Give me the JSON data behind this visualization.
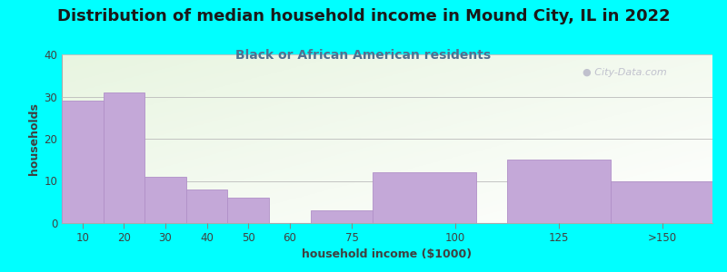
{
  "title": "Distribution of median household income in Mound City, IL in 2022",
  "subtitle": "Black or African American residents",
  "xlabel": "household income ($1000)",
  "ylabel": "households",
  "background_color": "#00FFFF",
  "bar_color": "#c4a8d8",
  "bar_edge_color": "#b090c8",
  "categories": [
    "10",
    "20",
    "30",
    "40",
    "50",
    "60",
    "75",
    "100",
    "125",
    ">150"
  ],
  "values": [
    29,
    31,
    11,
    8,
    6,
    0,
    3,
    12,
    15,
    10
  ],
  "tick_positions": [
    10,
    20,
    30,
    40,
    50,
    60,
    75,
    100,
    125,
    150
  ],
  "bar_lefts": [
    5,
    15,
    25,
    35,
    45,
    55,
    65,
    80,
    112.5,
    137.5
  ],
  "bar_widths": [
    10,
    10,
    10,
    10,
    10,
    10,
    15,
    25,
    25,
    25
  ],
  "xlim": [
    5,
    162
  ],
  "ylim": [
    0,
    40
  ],
  "yticks": [
    0,
    10,
    20,
    30,
    40
  ],
  "grid_color": "#bbbbbb",
  "title_fontsize": 13,
  "subtitle_fontsize": 10,
  "label_fontsize": 9,
  "tick_fontsize": 8.5,
  "title_color": "#1a1a1a",
  "subtitle_color": "#507090",
  "axis_label_color": "#404040",
  "watermark_text": "City-Data.com",
  "watermark_color": "#b8b8c8"
}
